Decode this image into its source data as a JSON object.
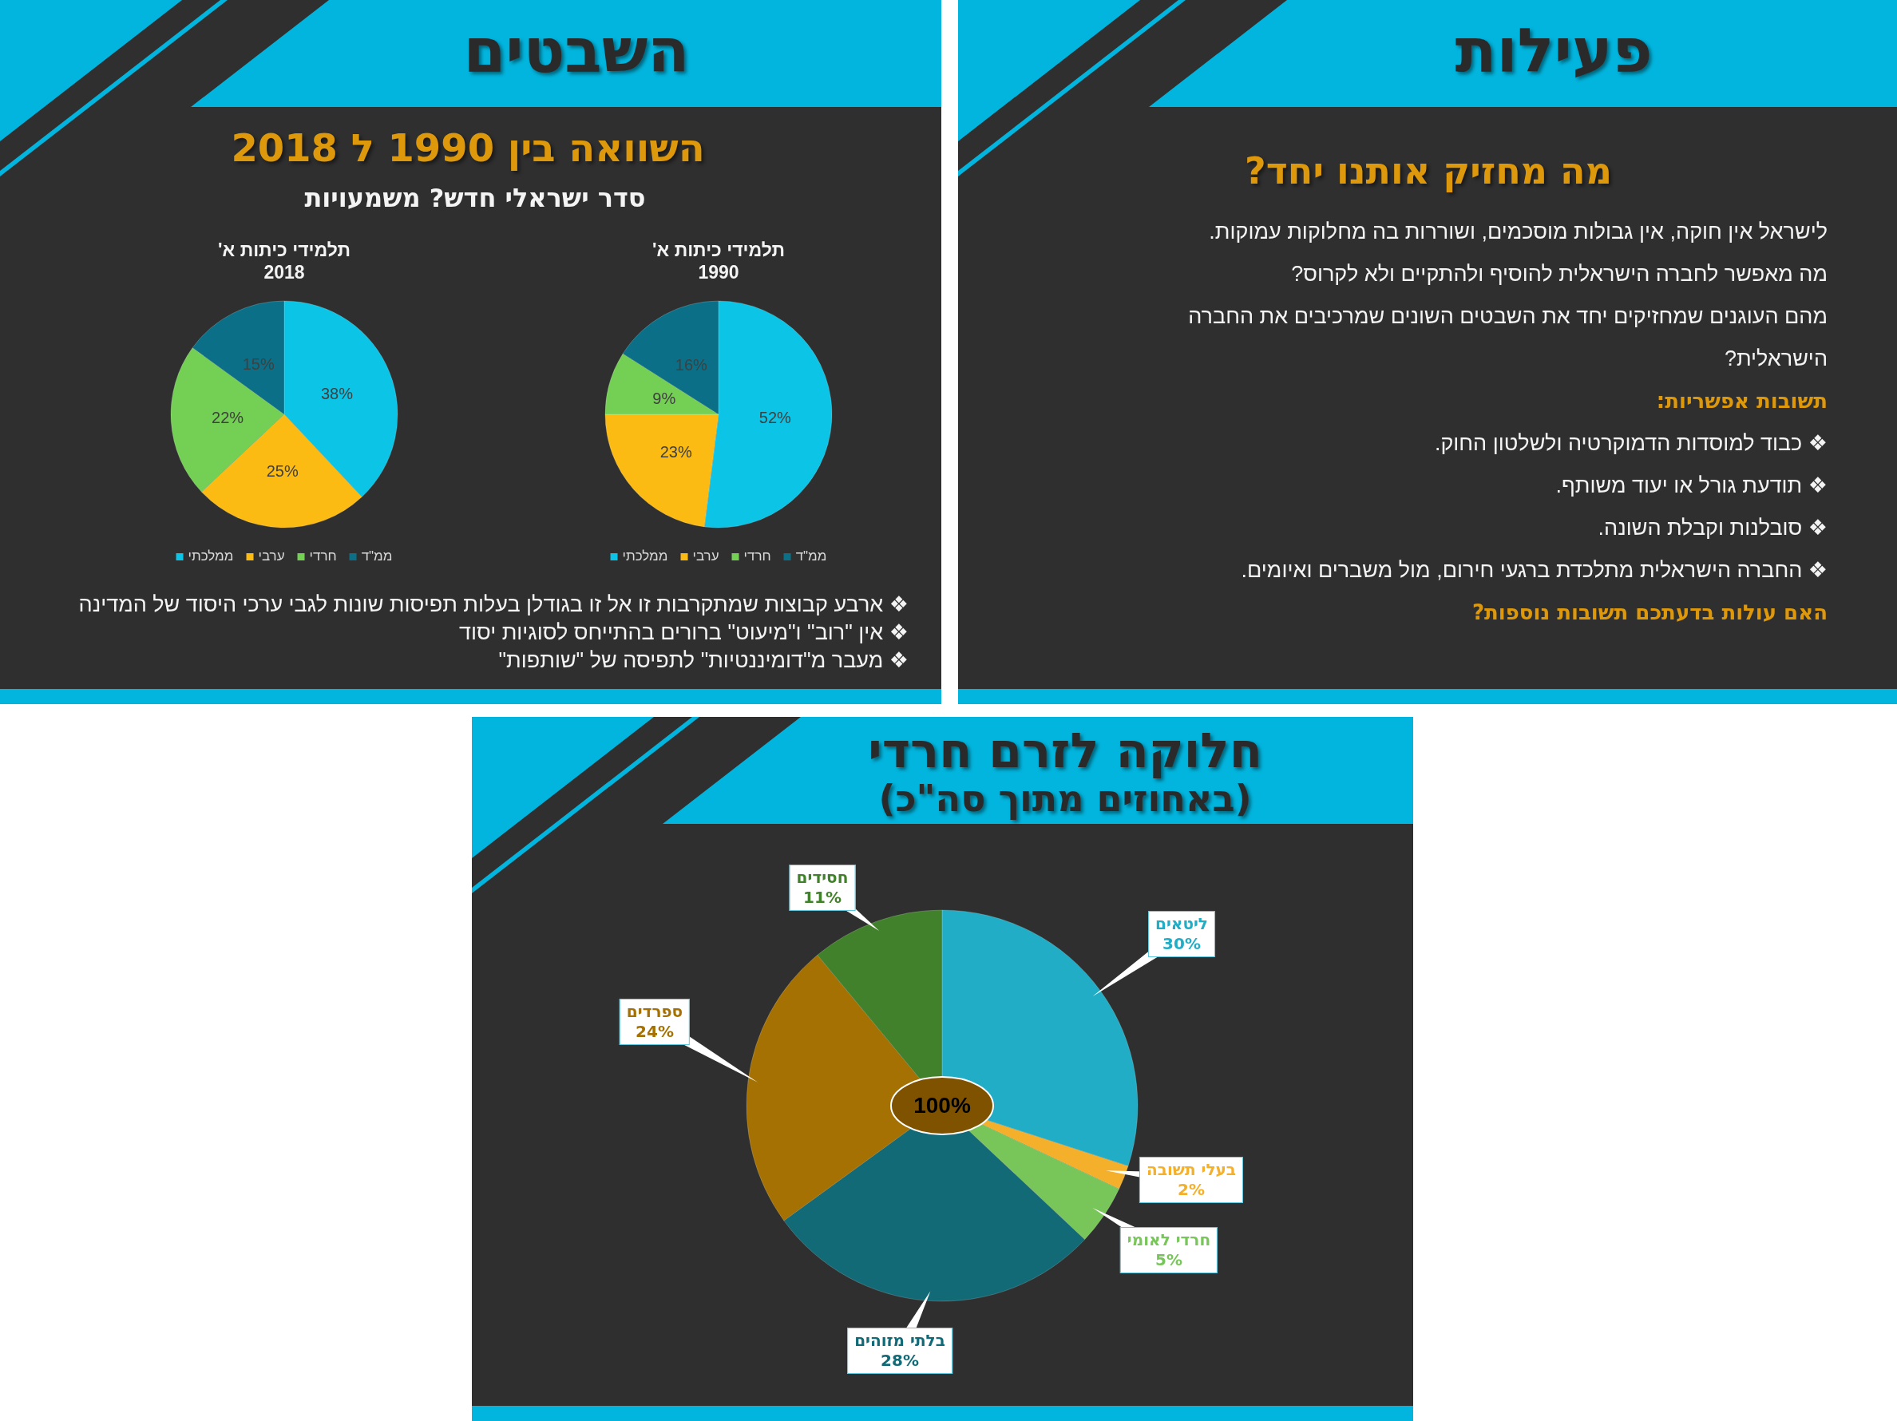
{
  "chart_data": [
    {
      "type": "other",
      "title": "השבטים",
      "subtitle": "השוואה בין 1990 ל 2018",
      "annotations": [
        "סדר ישראלי חדש? משמעויות",
        "❖ ארבע קבוצות שמתקרבות זו אל זו בגודלן בעלות תפיסות שונות לגבי ערכי היסוד של המדינה",
        "❖ אין \"רוב\" ו\"מיעוט\" ברורים בהתייחס לסוגיות יסוד",
        "❖ מעבר מ\"דומיננטיות\" לתפיסה של \"שותפות\""
      ]
    },
    {
      "type": "pie",
      "title": "תלמידי כיתות א'",
      "subtitle": "1990",
      "categories": [
        "ממלכתי",
        "ערבי",
        "חרדי",
        "ממ\"ד"
      ],
      "values": [
        52,
        23,
        9,
        16
      ],
      "colors": [
        "#0bc4e6",
        "#fcbb13",
        "#74cf55",
        "#0b6f87"
      ],
      "value_labels": [
        "52%",
        "23%",
        "9%",
        "16%"
      ],
      "legend": "bottom"
    },
    {
      "type": "pie",
      "title": "תלמידי כיתות א'",
      "subtitle": "2018",
      "categories": [
        "ממלכתי",
        "ערבי",
        "חרדי",
        "ממ\"ד"
      ],
      "values": [
        38,
        25,
        22,
        15
      ],
      "colors": [
        "#0bc4e6",
        "#fcbb13",
        "#74cf55",
        "#0b6f87"
      ],
      "value_labels": [
        "38%",
        "25%",
        "22%",
        "15%"
      ],
      "legend": "bottom"
    },
    {
      "type": "other",
      "title": "פעילות",
      "subtitle": "מה מחזיק אותנו יחד?",
      "annotations": [
        "לישראל אין חוקה, אין גבולות מוסכמים, ושוררות בה מחלוקות עמוקות.",
        "מה מאפשר לחברה הישראלית להוסיף ולהתקיים ולא לקרוס?",
        "מהם העוגנים שמחזיקים יחד את השבטים השונים שמרכיבים את החברה הישראלית?",
        "תשובות אפשריות:",
        "❖ כבוד למוסדות הדמוקרטיה ולשלטון החוק.",
        "❖ תודעת גורל או יעוד משותף.",
        "❖ סובלנות וקבלת השונה.",
        "❖ החברה הישראלית מתלכדת ברגעי חירום, מול משברים ואיומים.",
        "האם עולות בדעתכם תשובות נוספות?"
      ]
    },
    {
      "type": "pie",
      "title": "חלוקה לזרם חרדי",
      "subtitle": "(באחוזים מתוך סה\"כ)",
      "categories": [
        "ליטאים",
        "בעלי תשובה",
        "חרדי לאומי",
        "בלתי מזוהים",
        "ספרדים",
        "חסידים"
      ],
      "values": [
        30,
        2,
        5,
        28,
        24,
        11
      ],
      "colors": [
        "#21adc5",
        "#f4af2b",
        "#78c65a",
        "#136a77",
        "#a47102",
        "#42812b"
      ],
      "value_labels": [
        "30%",
        "2%",
        "5%",
        "28%",
        "24%",
        "11%"
      ],
      "annotations": [
        "100%"
      ]
    }
  ]
}
